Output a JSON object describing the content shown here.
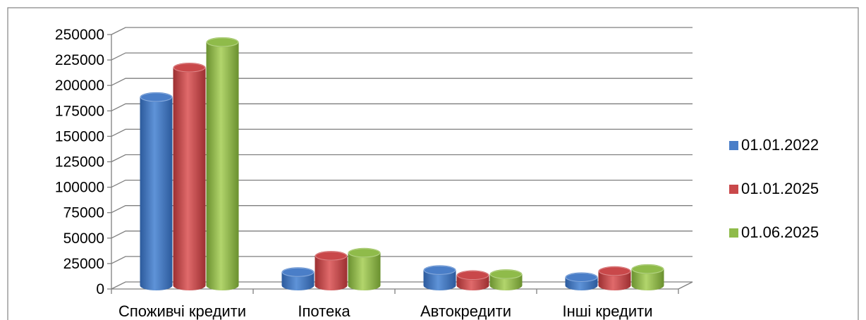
{
  "chart_data": {
    "type": "bar",
    "categories": [
      "Споживчі кредити",
      "Іпотека",
      "Автокредити",
      "Інші кредити"
    ],
    "series": [
      {
        "name": "01.01.2022",
        "values": [
          185000,
          13000,
          15000,
          8000
        ],
        "color": "#4a7ec8"
      },
      {
        "name": "01.01.2025",
        "values": [
          214000,
          29000,
          10000,
          14000
        ],
        "color": "#c9484a"
      },
      {
        "name": "01.06.2025",
        "values": [
          239000,
          32000,
          11000,
          16000
        ],
        "color": "#8fbb4a"
      }
    ],
    "ylim": [
      0,
      250000
    ],
    "yticks": [
      "0",
      "25000",
      "50000",
      "75000",
      "100000",
      "125000",
      "150000",
      "175000",
      "200000",
      "225000",
      "250000"
    ],
    "grid": true,
    "legend_position": "right"
  }
}
